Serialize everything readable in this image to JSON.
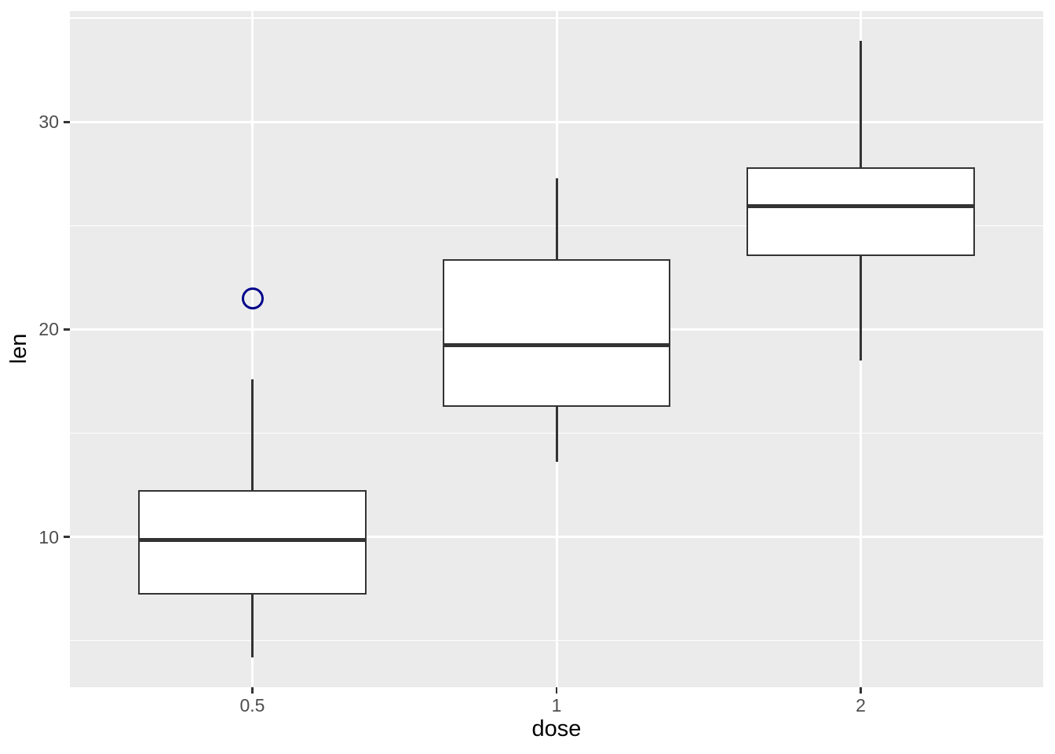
{
  "chart_data": {
    "type": "boxplot",
    "title": "",
    "xlabel": "dose",
    "ylabel": "len",
    "categories": [
      "0.5",
      "1",
      "2"
    ],
    "series": [
      {
        "category": "0.5",
        "lower_whisker": 4.2,
        "q1": 7.225,
        "median": 9.85,
        "q3": 12.25,
        "upper_whisker": 17.6,
        "outliers": [
          21.5
        ]
      },
      {
        "category": "1",
        "lower_whisker": 13.6,
        "q1": 16.25,
        "median": 19.25,
        "q3": 23.375,
        "upper_whisker": 27.3,
        "outliers": []
      },
      {
        "category": "2",
        "lower_whisker": 18.5,
        "q1": 23.525,
        "median": 25.95,
        "q3": 27.825,
        "upper_whisker": 33.9,
        "outliers": []
      }
    ],
    "y_axis": {
      "ticks": [
        10,
        20,
        30
      ],
      "minor_ticks": [
        5,
        15,
        25,
        35
      ],
      "ylim": [
        2.75,
        35.35
      ]
    },
    "x_axis": {
      "tick_labels": [
        "0.5",
        "1",
        "2"
      ]
    },
    "legend": "none",
    "style": {
      "panel_bg": "#EBEBEB",
      "grid_color": "#FFFFFF",
      "box_fill": "#FFFFFF",
      "box_border": "#333333",
      "median_color": "#333333",
      "whisker_color": "#333333",
      "outlier_color": "#00008B",
      "tick_label_color": "#4D4D4D",
      "tick_mark_color": "#333333",
      "axis_title_color": "#000000"
    }
  }
}
